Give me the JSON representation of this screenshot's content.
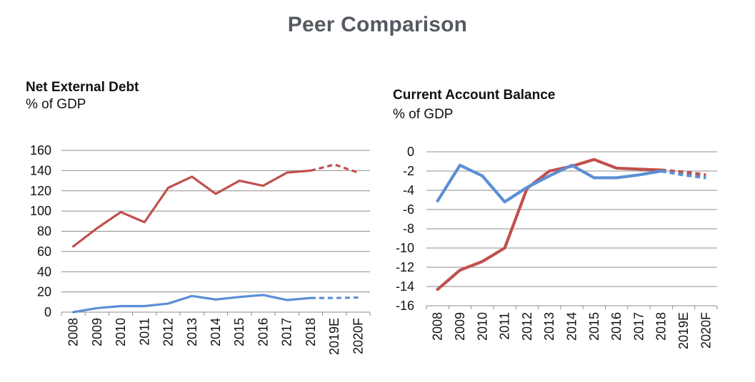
{
  "page": {
    "title": "Peer Comparison"
  },
  "chart_data": [
    {
      "type": "line",
      "title": "Net External Debt",
      "subtitle": "% of GDP",
      "categories": [
        "2008",
        "2009",
        "2010",
        "2011",
        "2012",
        "2013",
        "2014",
        "2015",
        "2016",
        "2017",
        "2018",
        "2019E",
        "2020F"
      ],
      "forecast_from_index": 10,
      "ylim": [
        0,
        160
      ],
      "yticks": [
        0,
        20,
        40,
        60,
        80,
        100,
        120,
        140,
        160
      ],
      "grid": true,
      "series": [
        {
          "color": "#c0504d",
          "values": [
            65,
            83,
            99,
            89,
            123,
            134,
            117,
            130,
            125,
            138,
            140,
            146,
            138
          ]
        },
        {
          "color": "#5b8fd6",
          "values": [
            0,
            4,
            6,
            6,
            8.5,
            16,
            12.5,
            15,
            17,
            12,
            14,
            14,
            14.5
          ]
        }
      ]
    },
    {
      "type": "line",
      "title": "Current Account Balance",
      "subtitle": "% of GDP",
      "categories": [
        "2008",
        "2009",
        "2010",
        "2011",
        "2012",
        "2013",
        "2014",
        "2015",
        "2016",
        "2017",
        "2018",
        "2019E",
        "2020F"
      ],
      "forecast_from_index": 10,
      "ylim": [
        -16,
        0
      ],
      "yticks": [
        0,
        -2,
        -4,
        -6,
        -8,
        -10,
        -12,
        -14,
        -16
      ],
      "grid": true,
      "series": [
        {
          "color": "#c0504d",
          "values": [
            -14.3,
            -12.3,
            -11.4,
            -10,
            -3.8,
            -2,
            -1.5,
            -0.8,
            -1.7,
            -1.8,
            -1.9,
            -2.1,
            -2.4
          ]
        },
        {
          "color": "#5b8fd6",
          "values": [
            -5.1,
            -1.4,
            -2.5,
            -5.2,
            -3.7,
            -2.5,
            -1.4,
            -2.7,
            -2.7,
            -2.4,
            -2,
            -2.4,
            -2.7
          ]
        }
      ]
    }
  ]
}
